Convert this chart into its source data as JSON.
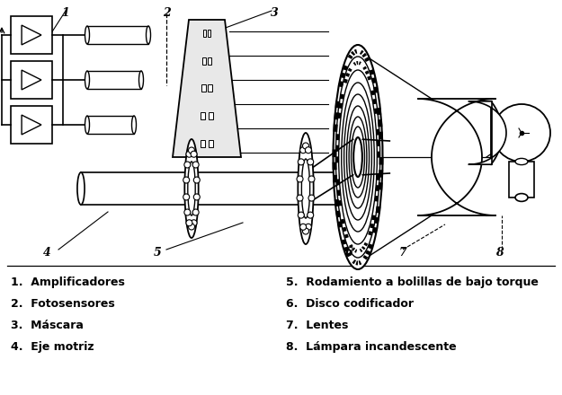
{
  "background_color": "#ffffff",
  "line_color": "#000000",
  "figure_width": 6.25,
  "figure_height": 4.4,
  "dpi": 100,
  "legend": [
    "1.  Amplificadores",
    "2.  Fotosensores",
    "3.  Máscara",
    "4.  Eje motriz",
    "5.  Rodamiento a bolillas de bajo torque",
    "6.  Disco codificador",
    "7.  Lentes",
    "8.  Lámpara incandescente"
  ]
}
